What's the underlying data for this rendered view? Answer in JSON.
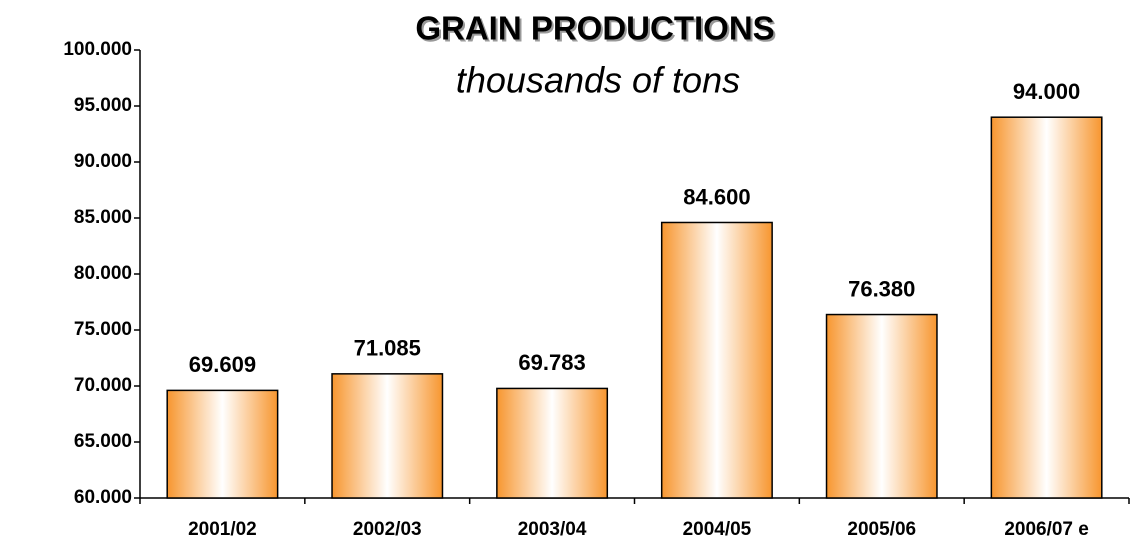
{
  "chart_data": {
    "type": "bar",
    "title": "GRAIN PRODUCTIONS",
    "subtitle": "thousands of tons",
    "categories": [
      "2001/02",
      "2002/03",
      "2003/04",
      "2004/05",
      "2005/06",
      "2006/07 e"
    ],
    "values": [
      69609,
      71085,
      69783,
      84600,
      76380,
      94000
    ],
    "value_labels": [
      "69.609",
      "71.085",
      "69.783",
      "84.600",
      "76.380",
      "94.000"
    ],
    "color": "#f7962f",
    "ylim": [
      60000,
      100000
    ],
    "yticks": [
      {
        "value": 60000,
        "label": "60.000"
      },
      {
        "value": 65000,
        "label": "65.000"
      },
      {
        "value": 70000,
        "label": "70.000"
      },
      {
        "value": 75000,
        "label": "75.000"
      },
      {
        "value": 80000,
        "label": "80.000"
      },
      {
        "value": 85000,
        "label": "85.000"
      },
      {
        "value": 90000,
        "label": "90.000"
      },
      {
        "value": 95000,
        "label": "95.000"
      },
      {
        "value": 100000,
        "label": "100.000"
      }
    ],
    "grid": false
  }
}
